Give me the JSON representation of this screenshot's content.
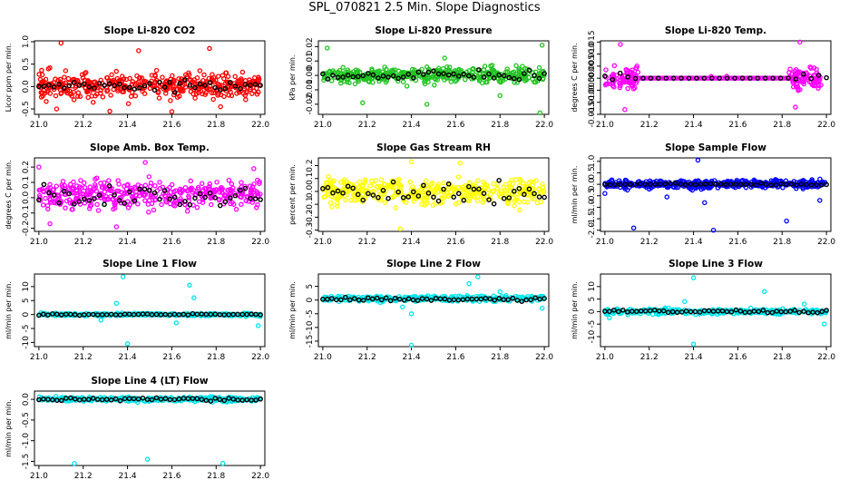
{
  "page_title": "SPL_070821  2.5 Min. Slope Diagnostics",
  "colors": {
    "primary_marker": "#000000"
  },
  "chart_data": [
    {
      "id": "co2",
      "type": "scatter",
      "title": "Slope Li-820 CO2",
      "ylabel": "Licor ppm per min.",
      "xlim": [
        20.98,
        22.02
      ],
      "ylim": [
        -0.62,
        1.02
      ],
      "xticks": [
        21.0,
        21.2,
        21.4,
        21.6,
        21.8,
        22.0
      ],
      "xtick_labels": [
        "21.0",
        "21.2",
        "21.4",
        "21.6",
        "21.8",
        "22.0"
      ],
      "yticks": [
        -0.5,
        0.0,
        0.5,
        1.0
      ],
      "ytick_labels": [
        "-0.5",
        "0.0",
        "0.5",
        "1.0"
      ],
      "color": "#ff0000",
      "seed": 11,
      "n": 420,
      "spread": 0.28,
      "bias": 0.02,
      "clip": [
        -0.58,
        1.0
      ],
      "outliers": [
        [
          21.1,
          0.97
        ],
        [
          21.08,
          -0.5
        ],
        [
          21.32,
          -0.55
        ],
        [
          21.45,
          0.8
        ],
        [
          21.77,
          0.85
        ],
        [
          21.6,
          -0.56
        ],
        [
          21.82,
          -0.45
        ]
      ],
      "n_black": 45,
      "black_spread": 0.12
    },
    {
      "id": "pressure",
      "type": "scatter",
      "title": "Slope Li-820 Pressure",
      "ylabel": "kPa per min.",
      "xlim": [
        20.98,
        22.02
      ],
      "ylim": [
        -0.027,
        0.024
      ],
      "xticks": [
        21.0,
        21.2,
        21.4,
        21.6,
        21.8,
        22.0
      ],
      "xtick_labels": [
        "21.0",
        "21.2",
        "21.4",
        "21.6",
        "21.8",
        "22.0"
      ],
      "yticks": [
        -0.02,
        -0.01,
        0.0,
        0.01,
        0.02
      ],
      "ytick_labels": [
        "-0.02",
        "-0.01",
        "0.00",
        "0.01",
        "0.02"
      ],
      "color": "#22c422",
      "seed": 23,
      "n": 420,
      "spread": 0.0055,
      "bias": 0.0,
      "clip": [
        -0.026,
        0.022
      ],
      "outliers": [
        [
          21.02,
          0.019
        ],
        [
          21.18,
          -0.019
        ],
        [
          21.47,
          -0.02
        ],
        [
          21.55,
          0.012
        ],
        [
          21.98,
          -0.026
        ],
        [
          21.99,
          0.021
        ],
        [
          21.8,
          -0.014
        ]
      ],
      "n_black": 45,
      "black_spread": 0.003
    },
    {
      "id": "temp",
      "type": "scatter",
      "title": "Slope Li-820 Temp.",
      "ylabel": "degrees C per min.",
      "xlim": [
        20.98,
        22.02
      ],
      "ylim": [
        -0.015,
        0.0155
      ],
      "xticks": [
        21.0,
        21.2,
        21.4,
        21.6,
        21.8,
        22.0
      ],
      "xtick_labels": [
        "21.0",
        "21.2",
        "21.4",
        "21.6",
        "21.8",
        "22.0"
      ],
      "yticks": [
        -0.015,
        -0.01,
        -0.005,
        0.0,
        0.005,
        0.01,
        0.015
      ],
      "ytick_labels": [
        "-0.015",
        "-0.010",
        "-0.005",
        "0.000",
        "0.005",
        "0.010",
        "0.015"
      ],
      "color": "#ff00ff",
      "seed": 37,
      "n": 160,
      "spread": 0.0045,
      "bias": 0.0,
      "clip": [
        -0.014,
        0.015
      ],
      "band_active": [
        [
          21.0,
          21.15
        ],
        [
          21.83,
          21.98
        ]
      ],
      "band_flat_points": 70,
      "outliers": [
        [
          21.07,
          0.014
        ],
        [
          21.09,
          -0.013
        ],
        [
          21.88,
          0.015
        ],
        [
          21.86,
          -0.012
        ],
        [
          21.55,
          0.0008
        ],
        [
          21.48,
          0.0007
        ]
      ],
      "n_black": 30,
      "black_spread": 0.002
    },
    {
      "id": "ambbox",
      "type": "scatter",
      "title": "Slope Amb. Box Temp.",
      "ylabel": "degrees C per min.",
      "xlim": [
        20.98,
        22.02
      ],
      "ylim": [
        -0.22,
        0.26
      ],
      "xticks": [
        21.0,
        21.2,
        21.4,
        21.6,
        21.8,
        22.0
      ],
      "xtick_labels": [
        "21.0",
        "21.2",
        "21.4",
        "21.6",
        "21.8",
        "22.0"
      ],
      "yticks": [
        -0.2,
        -0.1,
        0.0,
        0.1,
        0.2
      ],
      "ytick_labels": [
        "-0.2",
        "-0.1",
        "0.0",
        "0.1",
        "0.2"
      ],
      "color": "#ff00ff",
      "seed": 51,
      "n": 400,
      "spread": 0.08,
      "bias": 0.02,
      "clip": [
        -0.21,
        0.25
      ],
      "outliers": [
        [
          21.0,
          0.2
        ],
        [
          21.48,
          0.23
        ],
        [
          21.97,
          0.19
        ],
        [
          21.05,
          -0.17
        ],
        [
          21.35,
          -0.19
        ]
      ],
      "n_black": 45,
      "black_spread": 0.07
    },
    {
      "id": "rh",
      "type": "scatter",
      "title": "Slope Gas Stream RH",
      "ylabel": "percent per min.",
      "xlim": [
        20.98,
        22.02
      ],
      "ylim": [
        -0.31,
        0.26
      ],
      "xticks": [
        21.0,
        21.2,
        21.4,
        21.6,
        21.8,
        22.0
      ],
      "xtick_labels": [
        "21.0",
        "21.2",
        "21.4",
        "21.6",
        "21.8",
        "22.0"
      ],
      "yticks": [
        -0.3,
        -0.2,
        -0.1,
        0.0,
        0.1,
        0.2
      ],
      "ytick_labels": [
        "-0.3",
        "-0.2",
        "-0.1",
        "0.0",
        "0.1",
        "0.2"
      ],
      "color": "#ffff00",
      "seed": 67,
      "n": 420,
      "spread": 0.1,
      "bias": 0.0,
      "clip": [
        -0.29,
        0.25
      ],
      "outliers": [
        [
          21.35,
          -0.29
        ],
        [
          21.62,
          0.22
        ],
        [
          21.4,
          0.23
        ]
      ],
      "n_black": 45,
      "black_spread": 0.09
    },
    {
      "id": "sample",
      "type": "scatter",
      "title": "Slope Sample Flow",
      "ylabel": "ml/min per min.",
      "xlim": [
        20.98,
        22.02
      ],
      "ylim": [
        -2.05,
        1.15
      ],
      "xticks": [
        21.0,
        21.2,
        21.4,
        21.6,
        21.8,
        22.0
      ],
      "xtick_labels": [
        "21.0",
        "21.2",
        "21.4",
        "21.6",
        "21.8",
        "22.0"
      ],
      "yticks": [
        -2.0,
        -1.5,
        -1.0,
        -0.5,
        0.0,
        0.5,
        1.0
      ],
      "ytick_labels": [
        "-2.0",
        "-1.5",
        "-1.0",
        "-0.5",
        "0.0",
        "0.5",
        "1.0"
      ],
      "color": "#0000ff",
      "seed": 79,
      "n": 420,
      "spread": 0.18,
      "bias": 0.0,
      "clip": [
        -2.0,
        1.1
      ],
      "outliers": [
        [
          21.42,
          1.05
        ],
        [
          21.13,
          -1.9
        ],
        [
          21.49,
          -2.0
        ],
        [
          21.82,
          -1.6
        ],
        [
          21.0,
          -0.4
        ],
        [
          21.45,
          -0.8
        ],
        [
          21.97,
          -0.7
        ],
        [
          21.28,
          -0.55
        ]
      ],
      "n_black": 45,
      "black_spread": 0.05
    },
    {
      "id": "line1",
      "type": "scatter",
      "title": "Slope Line 1 Flow",
      "ylabel": "ml/min per min.",
      "xlim": [
        20.98,
        22.02
      ],
      "ylim": [
        -11.5,
        14.5
      ],
      "xticks": [
        21.0,
        21.2,
        21.4,
        21.6,
        21.8,
        22.0
      ],
      "xtick_labels": [
        "21.0",
        "21.2",
        "21.4",
        "21.6",
        "21.8",
        "22.0"
      ],
      "yticks": [
        -10,
        -5,
        0,
        5,
        10
      ],
      "ytick_labels": [
        "-10",
        "-5",
        "0",
        "5",
        "10"
      ],
      "color": "#00e5ee",
      "seed": 83,
      "n": 320,
      "spread": 0.5,
      "bias": 0.0,
      "clip": [
        -11,
        14
      ],
      "outliers": [
        [
          21.38,
          13.5
        ],
        [
          21.4,
          -10.5
        ],
        [
          21.68,
          10.5
        ],
        [
          21.7,
          6.0
        ],
        [
          21.35,
          4.0
        ],
        [
          21.99,
          -4.0
        ],
        [
          21.28,
          -2.0
        ],
        [
          21.62,
          -3.0
        ]
      ],
      "n_black": 50,
      "black_spread": 0.3
    },
    {
      "id": "line2",
      "type": "scatter",
      "title": "Slope Line 2 Flow",
      "ylabel": "ml/min per min.",
      "xlim": [
        20.98,
        22.02
      ],
      "ylim": [
        -17,
        9.5
      ],
      "xticks": [
        21.0,
        21.2,
        21.4,
        21.6,
        21.8,
        22.0
      ],
      "xtick_labels": [
        "21.0",
        "21.2",
        "21.4",
        "21.6",
        "21.8",
        "22.0"
      ],
      "yticks": [
        -15,
        -10,
        -5,
        0,
        5
      ],
      "ytick_labels": [
        "-15",
        "-10",
        "-5",
        "0",
        "5"
      ],
      "color": "#00e5ee",
      "seed": 97,
      "n": 320,
      "spread": 1.0,
      "bias": 0.5,
      "clip": [
        -16.5,
        9
      ],
      "outliers": [
        [
          21.4,
          -16.5
        ],
        [
          21.4,
          -5.0
        ],
        [
          21.7,
          8.5
        ],
        [
          21.66,
          6.0
        ],
        [
          21.36,
          -2.5
        ],
        [
          21.99,
          -3.0
        ],
        [
          21.8,
          3.0
        ]
      ],
      "n_black": 50,
      "black_spread": 0.7
    },
    {
      "id": "line3",
      "type": "scatter",
      "title": "Slope Line 3 Flow",
      "ylabel": "ml/min per min.",
      "xlim": [
        20.98,
        22.02
      ],
      "ylim": [
        -14,
        15
      ],
      "xticks": [
        21.0,
        21.2,
        21.4,
        21.6,
        21.8,
        22.0
      ],
      "xtick_labels": [
        "21.0",
        "21.2",
        "21.4",
        "21.6",
        "21.8",
        "22.0"
      ],
      "yticks": [
        -10,
        -5,
        0,
        5,
        10
      ],
      "ytick_labels": [
        "-10",
        "-5",
        "0",
        "5",
        "10"
      ],
      "color": "#00e5ee",
      "seed": 101,
      "n": 320,
      "spread": 1.0,
      "bias": 0.0,
      "clip": [
        -13.5,
        14.5
      ],
      "outliers": [
        [
          21.4,
          13.5
        ],
        [
          21.4,
          -13.0
        ],
        [
          21.72,
          8.0
        ],
        [
          21.36,
          4.0
        ],
        [
          21.99,
          -5.0
        ],
        [
          21.02,
          -2.5
        ],
        [
          21.9,
          3.0
        ]
      ],
      "n_black": 50,
      "black_spread": 0.6
    },
    {
      "id": "line4",
      "type": "scatter",
      "title": "Slope Line 4 (LT) Flow",
      "ylabel": "ml/min per min.",
      "xlim": [
        20.98,
        22.02
      ],
      "ylim": [
        -1.6,
        0.2
      ],
      "xticks": [
        21.0,
        21.2,
        21.4,
        21.6,
        21.8,
        22.0
      ],
      "xtick_labels": [
        "21.0",
        "21.2",
        "21.4",
        "21.6",
        "21.8",
        "22.0"
      ],
      "yticks": [
        -1.5,
        -1.0,
        -0.5,
        0.0
      ],
      "ytick_labels": [
        "-1.5",
        "-1.0",
        "-0.5",
        "0.0"
      ],
      "color": "#00e5ee",
      "seed": 113,
      "n": 360,
      "spread": 0.05,
      "bias": 0.0,
      "clip": [
        -1.55,
        0.15
      ],
      "outliers": [
        [
          21.16,
          -1.55
        ],
        [
          21.49,
          -1.45
        ],
        [
          21.83,
          -1.55
        ]
      ],
      "n_black": 50,
      "black_spread": 0.04
    }
  ]
}
